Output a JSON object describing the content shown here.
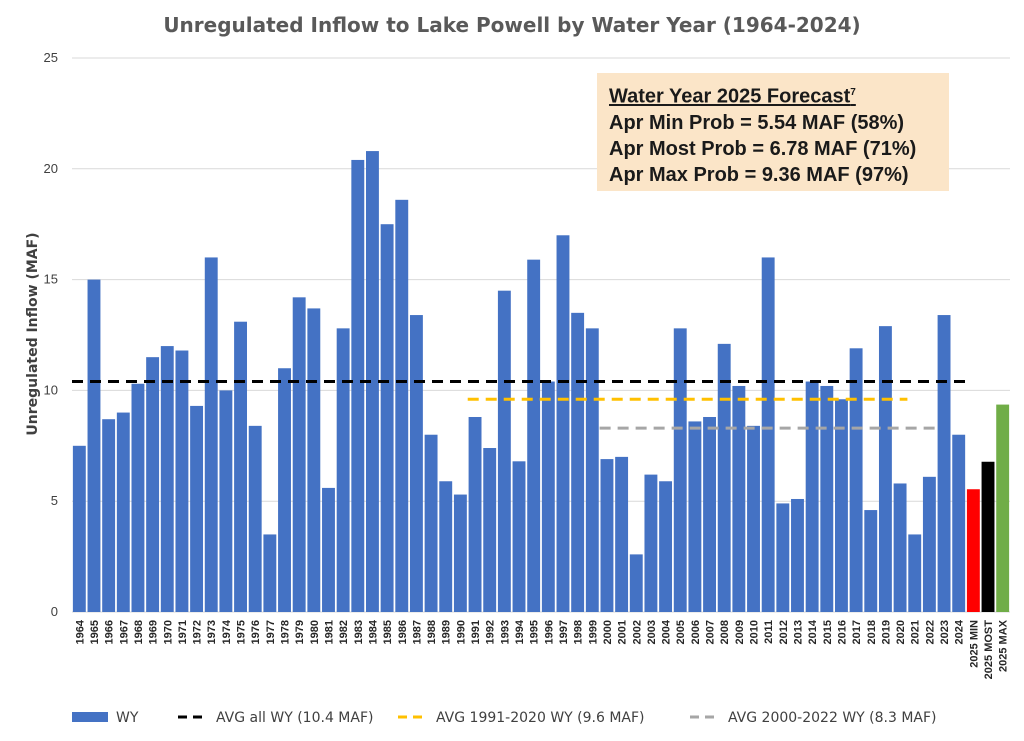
{
  "chart_data": {
    "type": "bar",
    "title": "Unregulated Inflow to Lake Powell by Water Year (1964-2024)",
    "ylabel": "Unregulated Inflow (MAF)",
    "xlabel": "",
    "ylim": [
      0,
      25
    ],
    "yticks": [
      "0",
      "5",
      "10",
      "15",
      "20",
      "25"
    ],
    "grid": true,
    "legend_position": "bottom",
    "categories": [
      "1964",
      "1965",
      "1966",
      "1967",
      "1968",
      "1969",
      "1970",
      "1971",
      "1972",
      "1973",
      "1974",
      "1975",
      "1976",
      "1977",
      "1978",
      "1979",
      "1980",
      "1981",
      "1982",
      "1983",
      "1984",
      "1985",
      "1986",
      "1987",
      "1988",
      "1989",
      "1990",
      "1991",
      "1992",
      "1993",
      "1994",
      "1995",
      "1996",
      "1997",
      "1998",
      "1999",
      "2000",
      "2001",
      "2002",
      "2003",
      "2004",
      "2005",
      "2006",
      "2007",
      "2008",
      "2009",
      "2010",
      "2011",
      "2012",
      "2013",
      "2014",
      "2015",
      "2016",
      "2017",
      "2018",
      "2019",
      "2020",
      "2021",
      "2022",
      "2023",
      "2024",
      "2025 MIN",
      "2025 MOST",
      "2025 MAX"
    ],
    "values": [
      7.5,
      15.0,
      8.7,
      9.0,
      10.3,
      11.5,
      12.0,
      11.8,
      9.3,
      16.0,
      10.0,
      13.1,
      8.4,
      3.5,
      11.0,
      14.2,
      13.7,
      5.6,
      12.8,
      20.4,
      20.8,
      17.5,
      18.6,
      13.4,
      8.0,
      5.9,
      5.3,
      8.8,
      7.4,
      14.5,
      6.8,
      15.9,
      10.4,
      17.0,
      13.5,
      12.8,
      6.9,
      7.0,
      2.6,
      6.2,
      5.9,
      12.8,
      8.6,
      8.8,
      12.1,
      10.2,
      8.4,
      16.0,
      4.9,
      5.1,
      10.4,
      10.2,
      9.6,
      11.9,
      4.6,
      12.9,
      5.8,
      3.5,
      6.1,
      13.4,
      8.0,
      5.54,
      6.78,
      9.36
    ],
    "bar_colors": {
      "default": "#4472c4",
      "2025 MIN": "#ff0000",
      "2025 MOST": "#000000",
      "2025 MAX": "#70ad47"
    },
    "reference_lines": [
      {
        "name": "AVG all WY (10.4 MAF)",
        "value": 10.4,
        "from": "1964",
        "to": "2024",
        "color": "#000000"
      },
      {
        "name": "AVG 1991-2020 WY (9.6 MAF)",
        "value": 9.6,
        "from": "1991",
        "to": "2020",
        "color": "#ffc000"
      },
      {
        "name": "AVG 2000-2022 WY (8.3 MAF)",
        "value": 8.3,
        "from": "2000",
        "to": "2022",
        "color": "#a6a6a6"
      }
    ],
    "series": [
      {
        "name": "WY",
        "color": "#4472c4"
      }
    ]
  },
  "forecast": {
    "title": "Water Year 2025 Forecast",
    "footnote": "7",
    "lines": [
      "Apr Min Prob = 5.54 MAF (58%)",
      "Apr Most Prob = 6.78 MAF (71%)",
      "Apr Max Prob = 9.36 MAF (97%)"
    ]
  }
}
